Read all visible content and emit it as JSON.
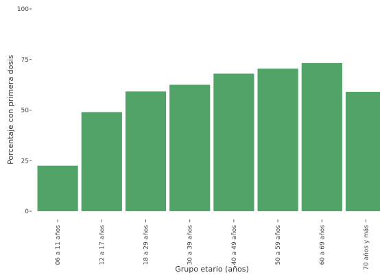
{
  "chart_data": {
    "type": "bar",
    "xlabel": "Grupo etario (años)",
    "ylabel": "Porcentaje con primera dosis",
    "ylim": [
      0,
      100
    ],
    "yticks": [
      0,
      25,
      50,
      75,
      100
    ],
    "categories": [
      "06 a 11 años",
      "12 a 17 años",
      "18 a 29 años",
      "30 a 39 años",
      "40 a 49 años",
      "50 a 59 años",
      "60 a 69 años",
      "70 años y más"
    ],
    "values": [
      22.5,
      49,
      59.2,
      62.5,
      68,
      70.5,
      73.2,
      59
    ],
    "bar_color": "#52a368",
    "grid": false,
    "legend": "none"
  }
}
